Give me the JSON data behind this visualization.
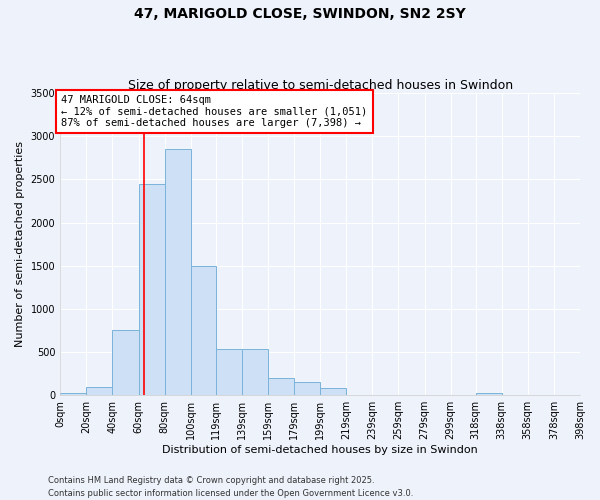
{
  "title_line1": "47, MARIGOLD CLOSE, SWINDON, SN2 2SY",
  "title_line2": "Size of property relative to semi-detached houses in Swindon",
  "xlabel": "Distribution of semi-detached houses by size in Swindon",
  "ylabel": "Number of semi-detached properties",
  "footer": "Contains HM Land Registry data © Crown copyright and database right 2025.\nContains public sector information licensed under the Open Government Licence v3.0.",
  "bin_labels": [
    "0sqm",
    "20sqm",
    "40sqm",
    "60sqm",
    "80sqm",
    "100sqm",
    "119sqm",
    "139sqm",
    "159sqm",
    "179sqm",
    "199sqm",
    "219sqm",
    "239sqm",
    "259sqm",
    "279sqm",
    "299sqm",
    "318sqm",
    "338sqm",
    "358sqm",
    "378sqm",
    "398sqm"
  ],
  "bin_edges": [
    0,
    20,
    40,
    60,
    80,
    100,
    119,
    139,
    159,
    179,
    199,
    219,
    239,
    259,
    279,
    299,
    318,
    338,
    358,
    378,
    398
  ],
  "bar_values": [
    30,
    100,
    750,
    2450,
    2850,
    1500,
    530,
    530,
    200,
    150,
    80,
    0,
    0,
    0,
    0,
    0,
    30,
    0,
    0,
    0,
    0
  ],
  "bar_color": "#cde0f5",
  "bar_edge_color": "#7ab3d9",
  "vline_x": 64,
  "vline_color": "red",
  "annotation_text": "47 MARIGOLD CLOSE: 64sqm\n← 12% of semi-detached houses are smaller (1,051)\n87% of semi-detached houses are larger (7,398) →",
  "annotation_box_color": "white",
  "annotation_box_edge": "red",
  "ylim": [
    0,
    3500
  ],
  "yticks": [
    0,
    500,
    1000,
    1500,
    2000,
    2500,
    3000,
    3500
  ],
  "background_color": "#eef2fb",
  "grid_color": "#ffffff",
  "title_fontsize": 10,
  "subtitle_fontsize": 9,
  "axis_label_fontsize": 8,
  "tick_fontsize": 7,
  "annotation_fontsize": 7.5,
  "footer_fontsize": 6
}
